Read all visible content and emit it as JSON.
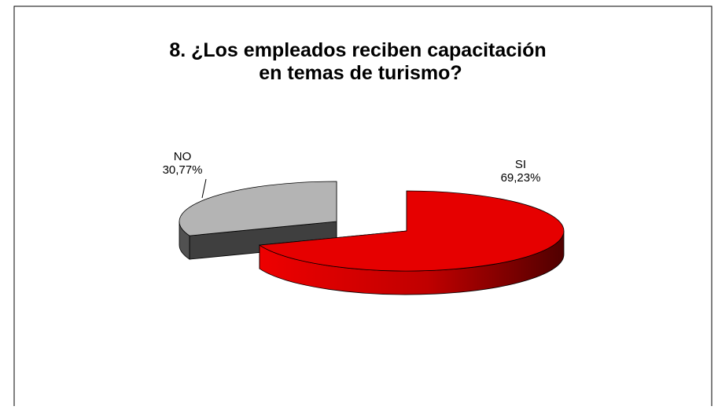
{
  "chart_data": {
    "type": "pie",
    "title": "8. ¿Los empleados reciben capacitación en temas de turismo?",
    "categories": [
      "SI",
      "NO"
    ],
    "values": [
      69.23,
      30.77
    ],
    "value_labels": [
      "69,23%",
      "30,77%"
    ],
    "colors": [
      "#e60000",
      "#b4b4b4"
    ]
  }
}
